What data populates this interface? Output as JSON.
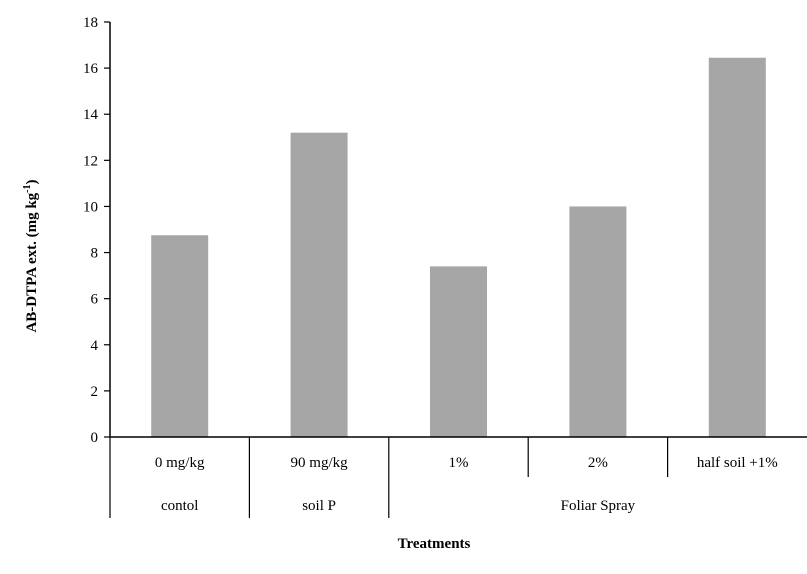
{
  "chart_data": {
    "type": "bar",
    "categories": [
      "0 mg/kg",
      "90 mg/kg",
      "1%",
      "2%",
      "half soil +1%"
    ],
    "values": [
      8.75,
      13.2,
      7.4,
      10.0,
      16.45
    ],
    "groups": [
      {
        "label": "contol",
        "span": [
          0,
          0
        ]
      },
      {
        "label": "soil P",
        "span": [
          1,
          1
        ]
      },
      {
        "label": "Foliar Spray",
        "span": [
          2,
          4
        ]
      }
    ],
    "ylabel": "AB-DTPA ext. (mg kg",
    "ylabel_sup": "-1",
    "ylabel_end": ")",
    "xlabel": "Treatments",
    "ylim": [
      0,
      18
    ],
    "yticks": [
      0,
      2,
      4,
      6,
      8,
      10,
      12,
      14,
      16,
      18
    ],
    "grid": false,
    "legend": "none",
    "bar_color": "#a6a6a6"
  }
}
